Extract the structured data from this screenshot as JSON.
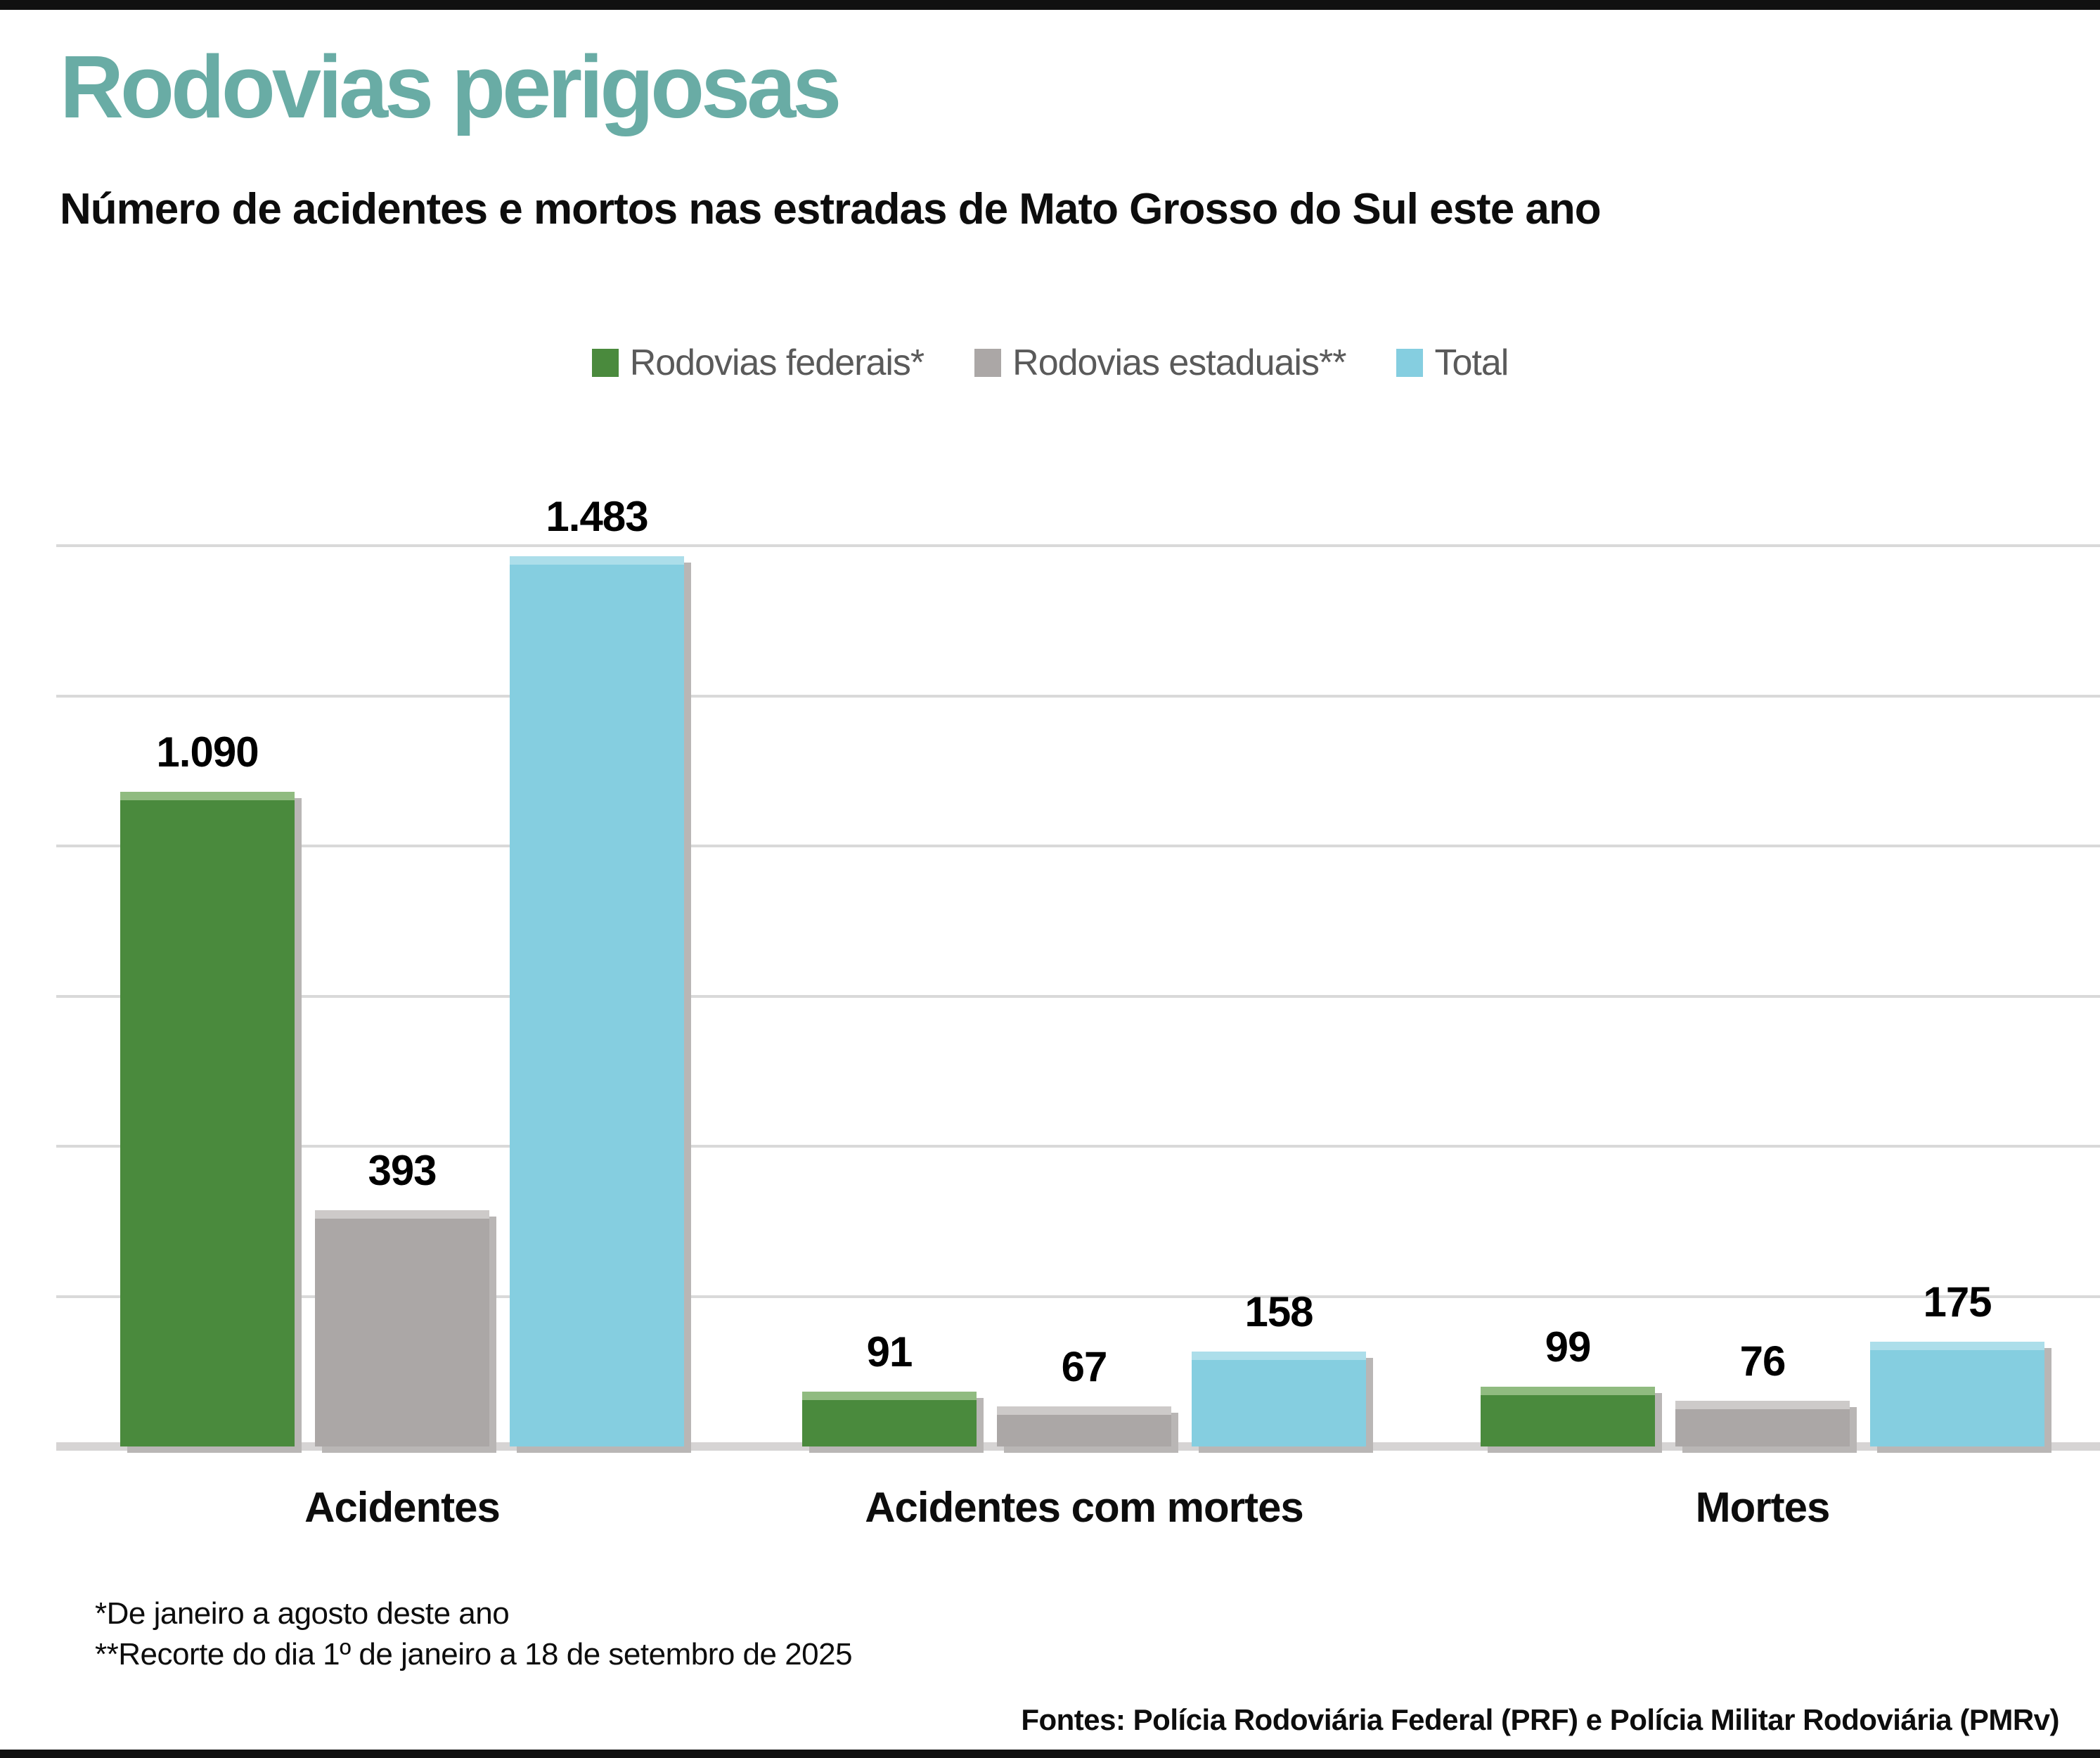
{
  "page": {
    "title": "Rodovias perigosas",
    "subtitle": "Número de acidentes e mortos nas estradas de Mato Grosso do Sul este ano",
    "footnote_1": "*De janeiro a agosto deste ano",
    "footnote_2": "**Recorte do dia 1º de janeiro a 18 de setembro de 2025",
    "source": "Fontes: Polícia Rodoviária Federal (PRF) e Polícia Militar Rodoviária (PMRv)"
  },
  "colors": {
    "title_teal": "#69ACA5",
    "federal_green": "#4A8A3D",
    "federal_green_light": "#90BB80",
    "estadual_gray": "#ABA7A6",
    "estadual_gray_light": "#CDCAC9",
    "total_blue": "#85CEE0",
    "total_blue_light": "#ACDEEA",
    "gridline": "#D9D9D9",
    "bar_shadow": "#B9B6B5",
    "legend_text": "#5A5A5A",
    "frame_black": "#111111"
  },
  "chart_data": {
    "type": "bar",
    "title": "Rodovias perigosas",
    "subtitle": "Número de acidentes e mortos nas estradas de Mato Grosso do Sul este ano",
    "categories": [
      "Acidentes",
      "Acidentes com mortes",
      "Mortes"
    ],
    "series": [
      {
        "name": "Rodovias federais*",
        "color": "#4A8A3D",
        "color_light": "#90BB80",
        "values": [
          1090,
          91,
          99
        ],
        "value_labels": [
          "1.090",
          "91",
          "99"
        ]
      },
      {
        "name": "Rodovias estaduais**",
        "color": "#ABA7A6",
        "color_light": "#CDCAC9",
        "values": [
          393,
          67,
          76
        ],
        "value_labels": [
          "393",
          "67",
          "76"
        ]
      },
      {
        "name": "Total",
        "color": "#85CEE0",
        "color_light": "#ACDEEA",
        "values": [
          1483,
          158,
          175
        ],
        "value_labels": [
          "1.483",
          "158",
          "175"
        ]
      }
    ],
    "ylim": [
      0,
      1500
    ],
    "gridline_step": 250,
    "grid": true,
    "legend_position": "top-center",
    "legend": [
      "Rodovias federais*",
      "Rodovias estaduais**",
      "Total"
    ]
  }
}
